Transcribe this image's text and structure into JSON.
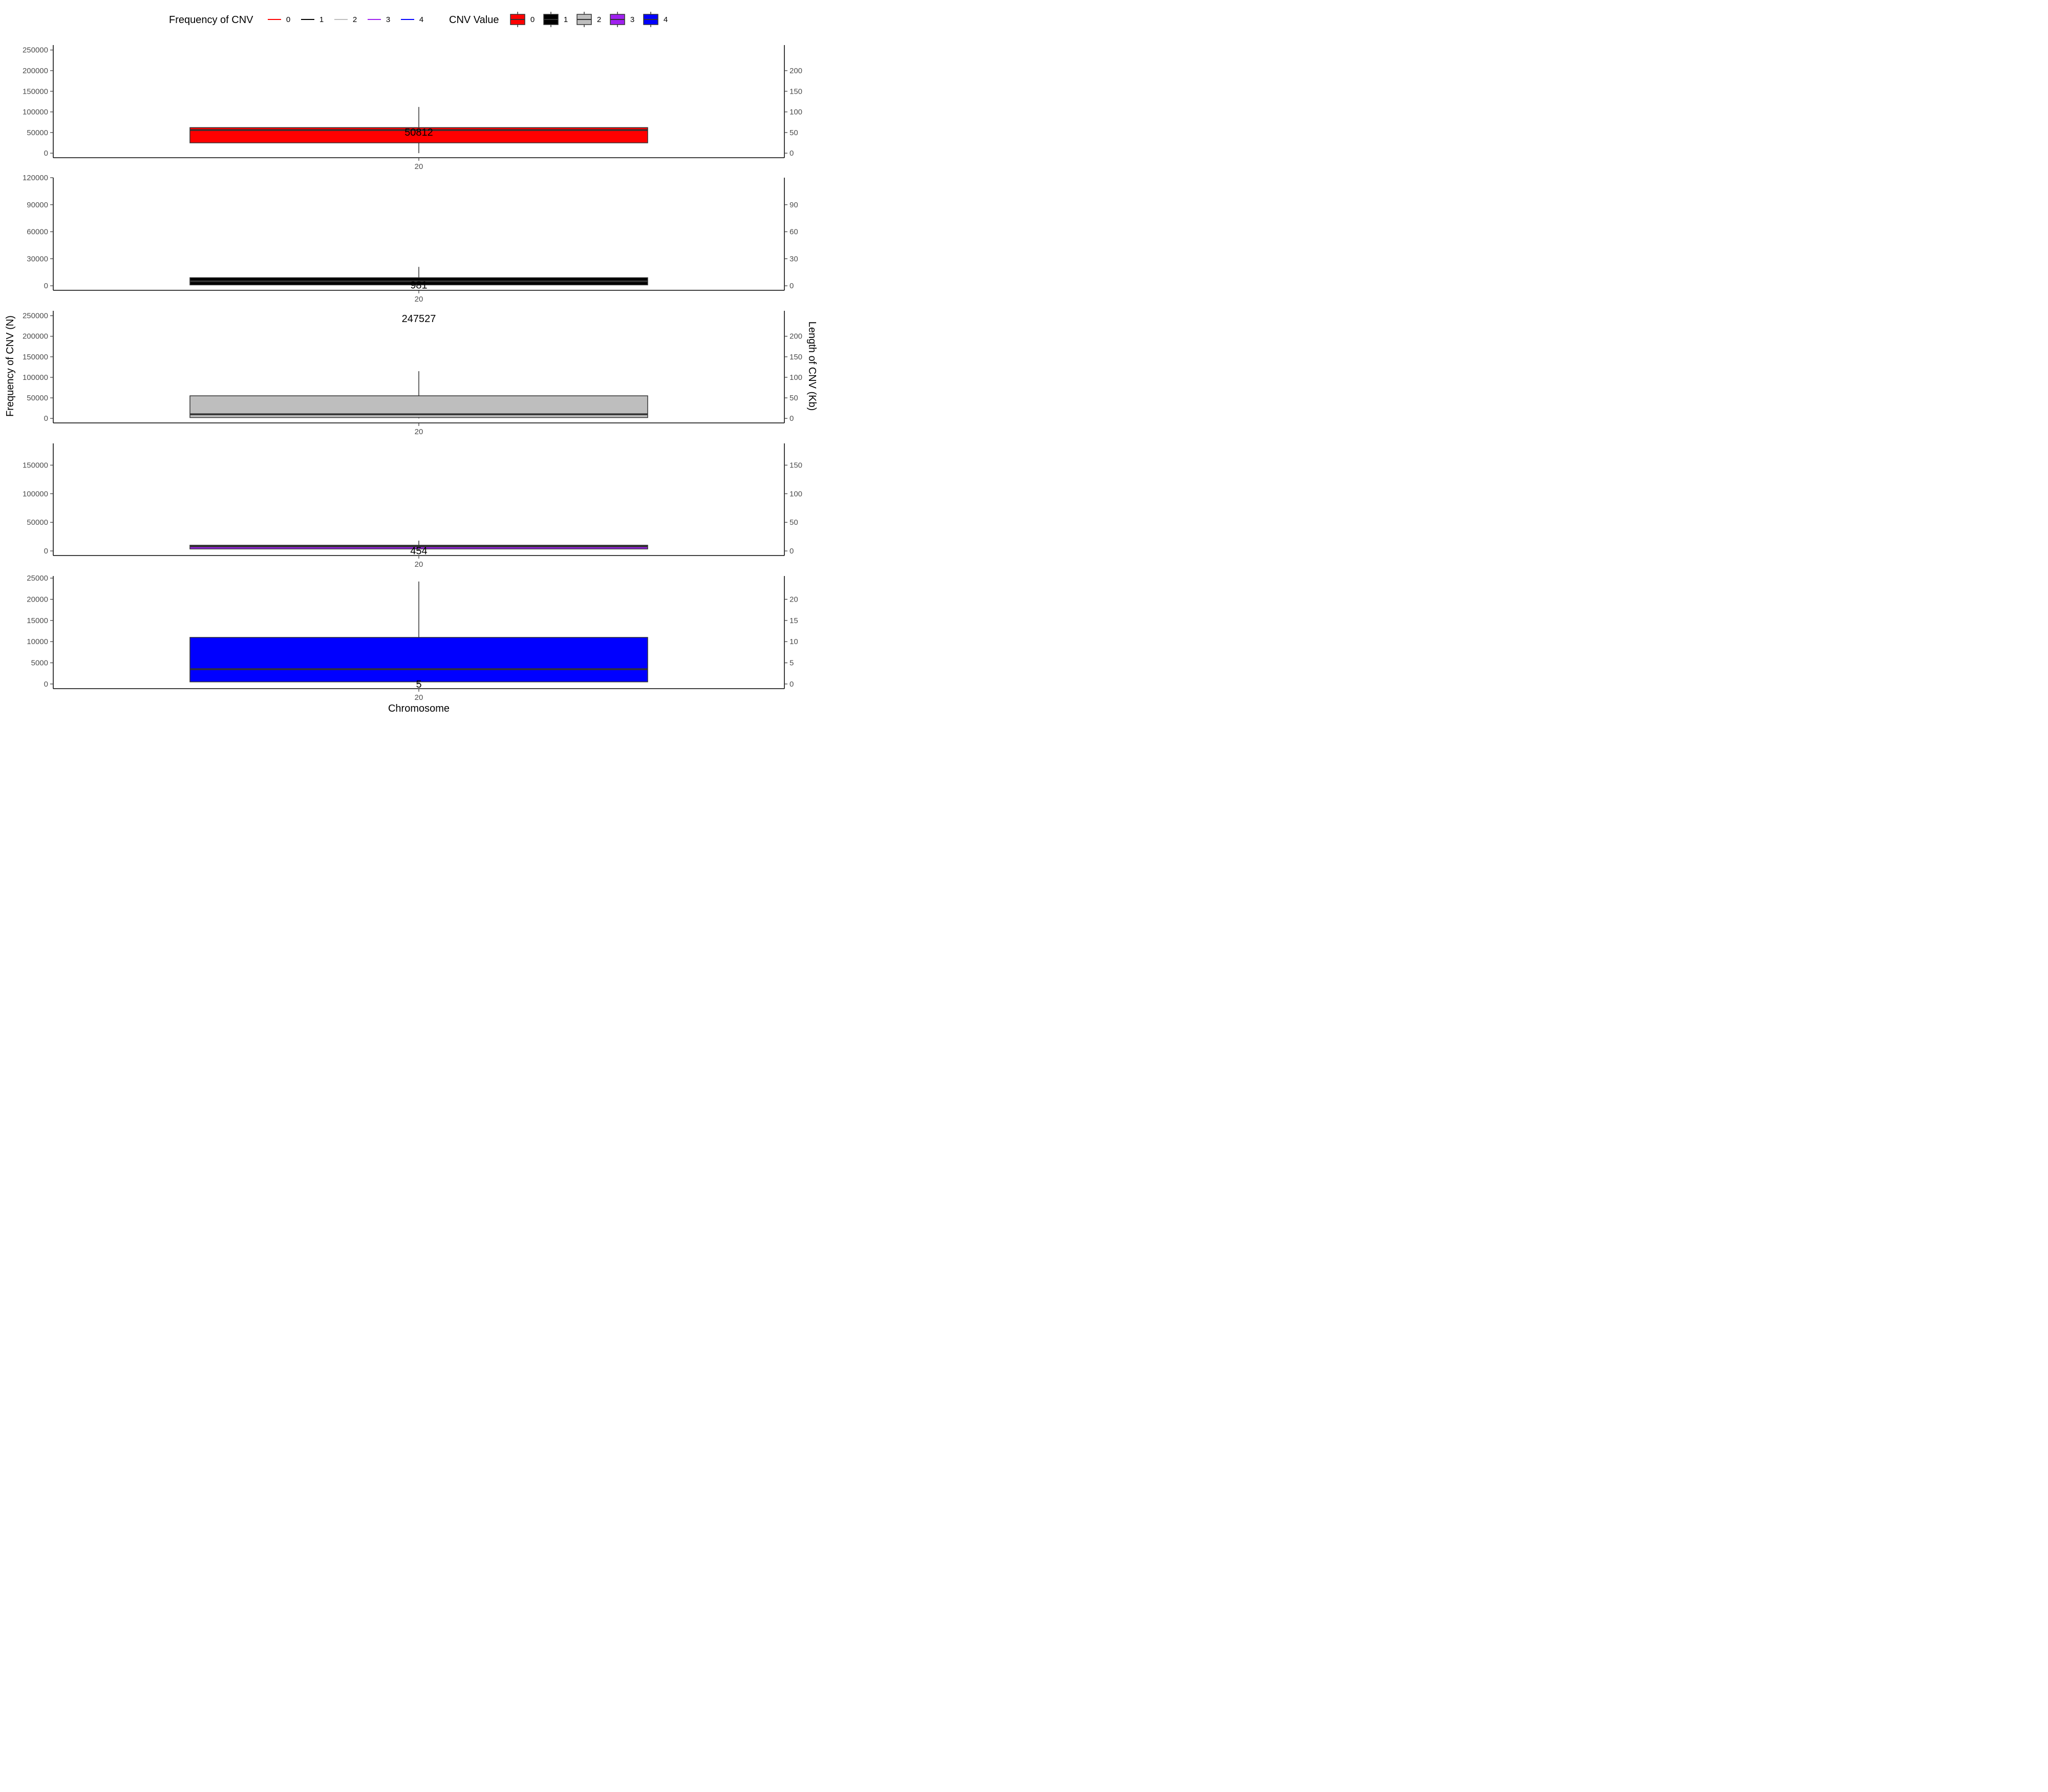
{
  "chart_data": {
    "type": "box",
    "xlabel": "Chromosome",
    "ylabel_left": "Frequency of CNV (N)",
    "ylabel_right": "Length of CNV (Kb)",
    "legend": {
      "position": "top",
      "line_title": "Frequency of CNV",
      "box_title": "CNV Value",
      "entries": [
        {
          "label": "0",
          "color": "#ff0000"
        },
        {
          "label": "1",
          "color": "#000000"
        },
        {
          "label": "2",
          "color": "#bebebe"
        },
        {
          "label": "3",
          "color": "#a020f0"
        },
        {
          "label": "4",
          "color": "#0000ff"
        }
      ]
    },
    "panels": [
      {
        "cnv_value": "0",
        "category": "20",
        "fill": "#ff0000",
        "left_ylim": [
          -11000,
          262000
        ],
        "left_ticks": [
          0,
          50000,
          100000,
          150000,
          200000,
          250000
        ],
        "right_ylim": [
          -11000,
          262000
        ],
        "right_ticks": [
          0,
          50,
          100,
          150,
          200
        ],
        "right_scale": 1000,
        "box": {
          "whisker_low": 0,
          "q1": 25000,
          "median": 56000,
          "q3": 62000,
          "whisker_high": 112000
        },
        "frequency": 50812,
        "frequency_label": "50812"
      },
      {
        "cnv_value": "1",
        "category": "20",
        "fill": "#000000",
        "left_ylim": [
          -5000,
          120000
        ],
        "left_ticks": [
          0,
          30000,
          60000,
          90000,
          120000
        ],
        "right_ylim": [
          -5000,
          120000
        ],
        "right_ticks": [
          0,
          30,
          60,
          90
        ],
        "right_scale": 1000,
        "box": {
          "whisker_low": 0,
          "q1": 1000,
          "median": 5000,
          "q3": 9000,
          "whisker_high": 21000
        },
        "frequency": 981,
        "frequency_label": "981"
      },
      {
        "cnv_value": "2",
        "category": "20",
        "fill": "#bebebe",
        "left_ylim": [
          -11000,
          262000
        ],
        "left_ticks": [
          0,
          50000,
          100000,
          150000,
          200000,
          250000
        ],
        "right_ylim": [
          -11000,
          262000
        ],
        "right_ticks": [
          0,
          50,
          100,
          150,
          200
        ],
        "right_scale": 1000,
        "box": {
          "whisker_low": 0,
          "q1": 2000,
          "median": 10000,
          "q3": 55000,
          "whisker_high": 115000
        },
        "frequency": 247527,
        "frequency_label": "247527"
      },
      {
        "cnv_value": "3",
        "category": "20",
        "fill": "#a020f0",
        "left_ylim": [
          -8000,
          188000
        ],
        "left_ticks": [
          0,
          50000,
          100000,
          150000
        ],
        "right_ylim": [
          -8000,
          188000
        ],
        "right_ticks": [
          0,
          50,
          100,
          150
        ],
        "right_scale": 1000,
        "box": {
          "whisker_low": 0,
          "q1": 3500,
          "median": 8000,
          "q3": 10000,
          "whisker_high": 18000
        },
        "frequency": 454,
        "frequency_label": "454"
      },
      {
        "cnv_value": "4",
        "category": "20",
        "fill": "#0000ff",
        "left_ylim": [
          -1100,
          25500
        ],
        "left_ticks": [
          0,
          5000,
          10000,
          15000,
          20000,
          25000
        ],
        "right_ylim": [
          -1100,
          25500
        ],
        "right_ticks": [
          0,
          5,
          10,
          15,
          20
        ],
        "right_scale": 1000,
        "box": {
          "whisker_low": 0,
          "q1": 500,
          "median": 3500,
          "q3": 11000,
          "whisker_high": 24200
        },
        "frequency": 5,
        "frequency_label": "5"
      }
    ]
  }
}
